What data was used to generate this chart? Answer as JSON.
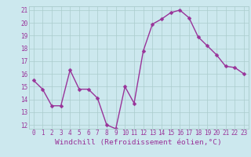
{
  "x": [
    0,
    1,
    2,
    3,
    4,
    5,
    6,
    7,
    8,
    9,
    10,
    11,
    12,
    13,
    14,
    15,
    16,
    17,
    18,
    19,
    20,
    21,
    22,
    23
  ],
  "y": [
    15.5,
    14.8,
    13.5,
    13.5,
    16.3,
    14.8,
    14.8,
    14.1,
    12.0,
    11.7,
    15.0,
    13.7,
    17.8,
    19.9,
    20.3,
    20.8,
    21.0,
    20.4,
    18.9,
    18.2,
    17.5,
    16.6,
    16.5,
    16.0
  ],
  "line_color": "#993399",
  "marker_color": "#993399",
  "bg_color": "#cce8ee",
  "grid_color": "#aacccc",
  "axis_label_color": "#993399",
  "xlabel": "Windchill (Refroidissement éolien,°C)",
  "ylim": [
    11.7,
    21.3
  ],
  "xlim": [
    -0.5,
    23.5
  ],
  "yticks": [
    12,
    13,
    14,
    15,
    16,
    17,
    18,
    19,
    20,
    21
  ],
  "xticks": [
    0,
    1,
    2,
    3,
    4,
    5,
    6,
    7,
    8,
    9,
    10,
    11,
    12,
    13,
    14,
    15,
    16,
    17,
    18,
    19,
    20,
    21,
    22,
    23
  ],
  "tick_color": "#993399",
  "tick_label_size": 5.5,
  "xlabel_size": 6.8,
  "line_width": 1.0,
  "marker_size": 2.5
}
